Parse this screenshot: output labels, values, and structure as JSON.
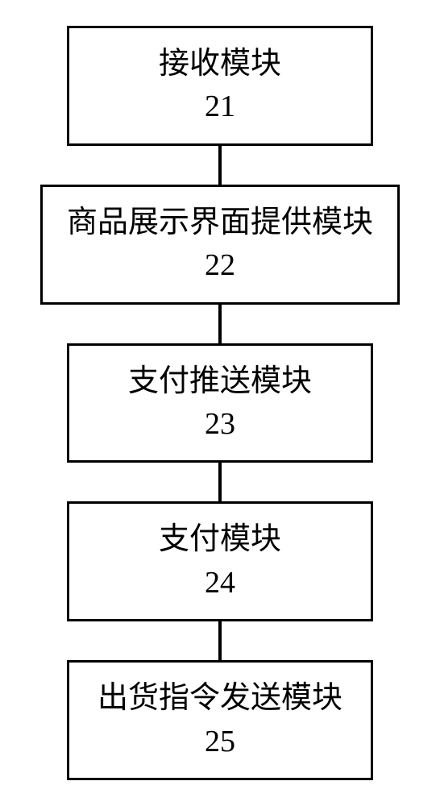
{
  "diagram": {
    "type": "flowchart",
    "direction": "vertical",
    "background_color": "#ffffff",
    "border_color": "#000000",
    "border_width": 3,
    "text_color": "#000000",
    "font_size": 38,
    "connector_color": "#000000",
    "connector_width": 4,
    "connector_height": 48,
    "node_min_width": 380,
    "nodes": [
      {
        "id": "node1",
        "label": "接收模块",
        "number": "21"
      },
      {
        "id": "node2",
        "label": "商品展示界面提供模块",
        "number": "22"
      },
      {
        "id": "node3",
        "label": "支付推送模块",
        "number": "23"
      },
      {
        "id": "node4",
        "label": "支付模块",
        "number": "24"
      },
      {
        "id": "node5",
        "label": "出货指令发送模块",
        "number": "25"
      }
    ]
  }
}
